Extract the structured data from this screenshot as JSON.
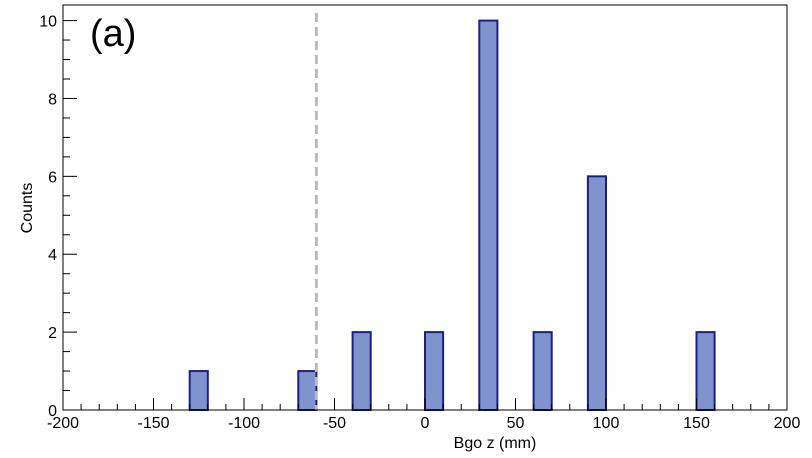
{
  "chart_data": {
    "type": "bar",
    "panel_label": "(a)",
    "xlabel": "Bgo z (mm)",
    "ylabel": "Counts",
    "xlim": [
      -200,
      200
    ],
    "ylim": [
      0,
      10.4
    ],
    "bin_width": 10,
    "bins": [
      {
        "x0": -130,
        "x1": -120,
        "value": 1
      },
      {
        "x0": -70,
        "x1": -60,
        "value": 1
      },
      {
        "x0": -40,
        "x1": -30,
        "value": 2
      },
      {
        "x0": 0,
        "x1": 10,
        "value": 2
      },
      {
        "x0": 30,
        "x1": 40,
        "value": 10
      },
      {
        "x0": 60,
        "x1": 70,
        "value": 2
      },
      {
        "x0": 90,
        "x1": 100,
        "value": 6
      },
      {
        "x0": 150,
        "x1": 160,
        "value": 2
      }
    ],
    "x_ticks": [
      -200,
      -150,
      -100,
      -50,
      0,
      50,
      100,
      150,
      200
    ],
    "x_tick_labels": [
      "-200",
      "-150",
      "-100",
      "-50",
      "0",
      "50",
      "100",
      "150",
      "200"
    ],
    "y_ticks": [
      0,
      2,
      4,
      6,
      8,
      10
    ],
    "y_tick_labels": [
      "0",
      "2",
      "4",
      "6",
      "8",
      "10"
    ],
    "cut_line_x": -60,
    "grid": false,
    "colors": {
      "bar_fill": "#7f94cc",
      "bar_stroke": "#1c1f8a",
      "cut_line": "#bbbbbb",
      "axis": "#000000"
    }
  }
}
